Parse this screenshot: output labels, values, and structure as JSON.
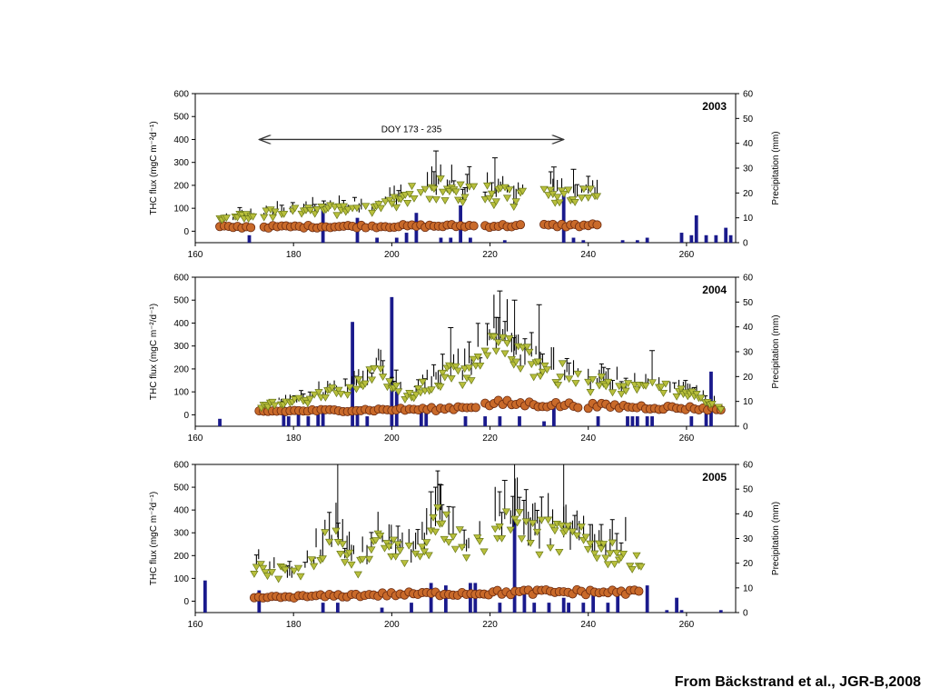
{
  "credit": "From Bäckstrand et al., JGR-B,2008",
  "colors": {
    "precip": "#1a1a8c",
    "thc_total": "#000000",
    "thc_triangle": "#b8bf3c",
    "thc_triangle_edge": "#6b7a1a",
    "thc_circle": "#c96a2a",
    "thc_circle_dark": "#6b2a10",
    "frame": "#000000"
  },
  "chart_data": [
    {
      "type": "scatter",
      "year_label": "2003",
      "annotation": "DOY 173 - 235",
      "annotation_range": [
        173,
        235
      ],
      "xlim": [
        160,
        270
      ],
      "xticks": [
        "160",
        "180",
        "200",
        "220",
        "240",
        "260"
      ],
      "ylim": [
        -50,
        600
      ],
      "yticks": [
        "0",
        "100",
        "200",
        "300",
        "400",
        "500",
        "600"
      ],
      "ylabel": "THC flux (mgC m⁻²d⁻¹)",
      "y2lim": [
        0,
        60
      ],
      "y2ticks": [
        "0",
        "10",
        "20",
        "30",
        "40",
        "50",
        "60"
      ],
      "y2label": "Precipitation (mm)",
      "segments": [
        [
          165,
          172
        ],
        [
          174,
          195
        ],
        [
          196,
          217
        ],
        [
          219,
          227
        ],
        [
          231,
          242
        ]
      ],
      "thc_trend": [
        [
          165,
          50
        ],
        [
          175,
          80
        ],
        [
          185,
          95
        ],
        [
          195,
          110
        ],
        [
          200,
          130
        ],
        [
          205,
          165
        ],
        [
          210,
          180
        ],
        [
          215,
          175
        ],
        [
          220,
          165
        ],
        [
          225,
          160
        ],
        [
          232,
          170
        ],
        [
          238,
          165
        ],
        [
          242,
          160
        ]
      ],
      "circle_level": [
        [
          165,
          18
        ],
        [
          200,
          22
        ],
        [
          225,
          24
        ],
        [
          242,
          26
        ]
      ],
      "precip": [
        [
          171,
          3
        ],
        [
          186,
          13
        ],
        [
          193,
          10
        ],
        [
          197,
          2
        ],
        [
          201,
          2
        ],
        [
          203,
          4
        ],
        [
          205,
          12
        ],
        [
          210,
          2
        ],
        [
          212,
          2
        ],
        [
          214,
          15
        ],
        [
          216,
          2
        ],
        [
          223,
          1
        ],
        [
          235,
          19
        ],
        [
          237,
          2
        ],
        [
          239,
          1
        ],
        [
          247,
          1
        ],
        [
          250,
          1
        ],
        [
          252,
          2
        ],
        [
          259,
          4
        ],
        [
          261,
          3
        ],
        [
          262,
          11
        ],
        [
          264,
          3
        ],
        [
          266,
          3
        ],
        [
          268,
          6
        ],
        [
          269,
          3
        ]
      ],
      "spikes": [
        [
          209,
          350
        ],
        [
          221,
          320
        ],
        [
          233,
          280
        ],
        [
          237,
          270
        ]
      ]
    },
    {
      "type": "scatter",
      "year_label": "2004",
      "xlim": [
        160,
        270
      ],
      "xticks": [
        "160",
        "180",
        "200",
        "220",
        "240",
        "260"
      ],
      "ylim": [
        -50,
        600
      ],
      "yticks": [
        "0",
        "100",
        "200",
        "300",
        "400",
        "500",
        "600"
      ],
      "ylabel": "THC flux (mgC m⁻²/d⁻¹)",
      "y2lim": [
        0,
        60
      ],
      "y2ticks": [
        "0",
        "10",
        "20",
        "30",
        "40",
        "50",
        "60"
      ],
      "y2label": "Precipitation (mm)",
      "segments": [
        [
          173,
          218
        ],
        [
          219,
          238
        ],
        [
          240,
          267
        ]
      ],
      "thc_trend": [
        [
          173,
          40
        ],
        [
          180,
          60
        ],
        [
          188,
          100
        ],
        [
          192,
          120
        ],
        [
          197,
          200
        ],
        [
          200,
          160
        ],
        [
          203,
          80
        ],
        [
          206,
          120
        ],
        [
          210,
          150
        ],
        [
          215,
          200
        ],
        [
          218,
          250
        ],
        [
          221,
          320
        ],
        [
          225,
          280
        ],
        [
          230,
          220
        ],
        [
          235,
          180
        ],
        [
          240,
          140
        ],
        [
          245,
          130
        ],
        [
          250,
          140
        ],
        [
          255,
          120
        ],
        [
          260,
          100
        ],
        [
          265,
          60
        ],
        [
          267,
          30
        ]
      ],
      "circle_level": [
        [
          173,
          15
        ],
        [
          210,
          25
        ],
        [
          222,
          50
        ],
        [
          240,
          40
        ],
        [
          267,
          25
        ]
      ],
      "precip": [
        [
          165,
          3
        ],
        [
          178,
          8
        ],
        [
          179,
          4
        ],
        [
          181,
          8
        ],
        [
          183,
          4
        ],
        [
          185,
          8
        ],
        [
          186,
          8
        ],
        [
          192,
          42
        ],
        [
          193,
          8
        ],
        [
          195,
          4
        ],
        [
          200,
          52
        ],
        [
          201,
          14
        ],
        [
          206,
          6
        ],
        [
          207,
          6
        ],
        [
          215,
          4
        ],
        [
          219,
          4
        ],
        [
          222,
          4
        ],
        [
          226,
          4
        ],
        [
          231,
          2
        ],
        [
          233,
          10
        ],
        [
          242,
          4
        ],
        [
          248,
          4
        ],
        [
          249,
          4
        ],
        [
          250,
          4
        ],
        [
          252,
          4
        ],
        [
          253,
          4
        ],
        [
          261,
          4
        ],
        [
          264,
          7
        ],
        [
          265,
          22
        ]
      ],
      "spikes": [
        [
          212,
          380
        ],
        [
          222,
          540
        ],
        [
          225,
          500
        ],
        [
          230,
          480
        ],
        [
          253,
          280
        ]
      ]
    },
    {
      "type": "scatter",
      "year_label": "2005",
      "xlim": [
        160,
        270
      ],
      "xticks": [
        "160",
        "180",
        "200",
        "220",
        "240",
        "260"
      ],
      "ylim": [
        -50,
        600
      ],
      "yticks": [
        "0",
        "100",
        "200",
        "300",
        "400",
        "500",
        "600"
      ],
      "ylabel": "THC flux (mgC m⁻²d⁻¹)",
      "y2lim": [
        0,
        60
      ],
      "y2ticks": [
        "0",
        "10",
        "20",
        "30",
        "40",
        "50",
        "60"
      ],
      "y2label": "Precipitation (mm)",
      "segments": [
        [
          172,
          251
        ]
      ],
      "thc_trend": [
        [
          172,
          150
        ],
        [
          176,
          140
        ],
        [
          180,
          130
        ],
        [
          184,
          180
        ],
        [
          188,
          320
        ],
        [
          190,
          240
        ],
        [
          193,
          150
        ],
        [
          196,
          250
        ],
        [
          200,
          230
        ],
        [
          204,
          200
        ],
        [
          208,
          300
        ],
        [
          210,
          400
        ],
        [
          213,
          300
        ],
        [
          216,
          260
        ],
        [
          220,
          280
        ],
        [
          223,
          360
        ],
        [
          226,
          320
        ],
        [
          230,
          290
        ],
        [
          235,
          280
        ],
        [
          240,
          250
        ],
        [
          245,
          220
        ],
        [
          251,
          200
        ]
      ],
      "circle_level": [
        [
          172,
          15
        ],
        [
          200,
          30
        ],
        [
          230,
          40
        ],
        [
          251,
          40
        ]
      ],
      "precip": [
        [
          162,
          13
        ],
        [
          173,
          9
        ],
        [
          186,
          4
        ],
        [
          189,
          4
        ],
        [
          198,
          2
        ],
        [
          204,
          4
        ],
        [
          208,
          12
        ],
        [
          211,
          11
        ],
        [
          216,
          12
        ],
        [
          217,
          12
        ],
        [
          222,
          4
        ],
        [
          225,
          38
        ],
        [
          227,
          10
        ],
        [
          229,
          4
        ],
        [
          232,
          4
        ],
        [
          235,
          6
        ],
        [
          236,
          4
        ],
        [
          239,
          4
        ],
        [
          241,
          10
        ],
        [
          244,
          4
        ],
        [
          246,
          8
        ],
        [
          252,
          11
        ],
        [
          256,
          1
        ],
        [
          258,
          6
        ],
        [
          259,
          1
        ],
        [
          267,
          1
        ]
      ],
      "spikes": [
        [
          189,
          600
        ],
        [
          208,
          480
        ],
        [
          210,
          510
        ],
        [
          223,
          530
        ],
        [
          225,
          600
        ],
        [
          235,
          600
        ]
      ]
    }
  ]
}
